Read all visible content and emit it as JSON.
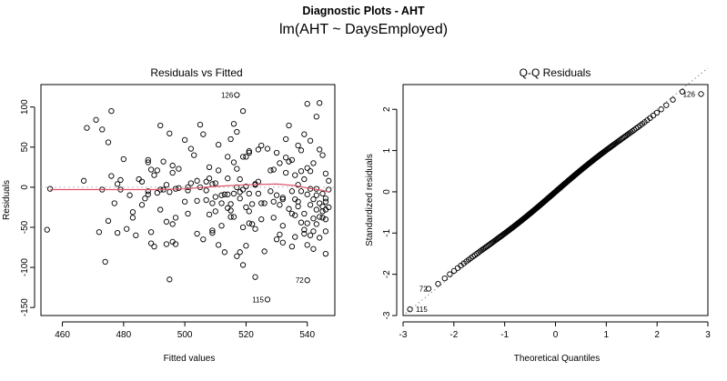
{
  "figure": {
    "title": "Diagnostic Plots - AHT",
    "subtitle": "lm(AHT ~ DaysEmployed)"
  },
  "colors": {
    "smooth_line": "#df536b",
    "reference_line": "#bebebe",
    "points": "#000000"
  },
  "chart_data": [
    {
      "type": "scatter",
      "title": "Residuals vs Fitted",
      "xlabel": "Fitted values",
      "ylabel": "Residuals",
      "xlim": [
        453,
        549
      ],
      "ylim": [
        -160,
        128
      ],
      "xticks": [
        460,
        480,
        500,
        520,
        540
      ],
      "yticks": [
        -150,
        -100,
        -50,
        0,
        50,
        100
      ],
      "points": [
        [
          455,
          -53
        ],
        [
          456,
          -2
        ],
        [
          467,
          8
        ],
        [
          468,
          74
        ],
        [
          471,
          84
        ],
        [
          472,
          -56
        ],
        [
          473,
          72
        ],
        [
          473,
          -3
        ],
        [
          474,
          -93
        ],
        [
          475,
          -42
        ],
        [
          475,
          56
        ],
        [
          476,
          14
        ],
        [
          476,
          95
        ],
        [
          477,
          -20
        ],
        [
          478,
          -57
        ],
        [
          478,
          4
        ],
        [
          479,
          9
        ],
        [
          479,
          -3
        ],
        [
          480,
          35
        ],
        [
          481,
          -52
        ],
        [
          482,
          -10
        ],
        [
          483,
          -38
        ],
        [
          483,
          -31
        ],
        [
          484,
          -60
        ],
        [
          485,
          10
        ],
        [
          486,
          7
        ],
        [
          486,
          -22
        ],
        [
          487,
          -14
        ],
        [
          488,
          31
        ],
        [
          488,
          -5
        ],
        [
          488,
          -9
        ],
        [
          488,
          34
        ],
        [
          489,
          -70
        ],
        [
          489,
          -56
        ],
        [
          489,
          22
        ],
        [
          490,
          -74
        ],
        [
          490,
          15
        ],
        [
          491,
          21
        ],
        [
          491,
          -7
        ],
        [
          492,
          -3
        ],
        [
          492,
          -28
        ],
        [
          492,
          77
        ],
        [
          493,
          -3
        ],
        [
          493,
          32
        ],
        [
          494,
          3
        ],
        [
          494,
          -43
        ],
        [
          494,
          -71
        ],
        [
          495,
          -115
        ],
        [
          495,
          67
        ],
        [
          495,
          -6
        ],
        [
          496,
          -68
        ],
        [
          496,
          27
        ],
        [
          496,
          -46
        ],
        [
          496,
          18
        ],
        [
          497,
          -71
        ],
        [
          497,
          -38
        ],
        [
          497,
          -2
        ],
        [
          498,
          23
        ],
        [
          498,
          -1
        ],
        [
          500,
          -18
        ],
        [
          500,
          59
        ],
        [
          501,
          0
        ],
        [
          501,
          -4
        ],
        [
          501,
          -33
        ],
        [
          502,
          5
        ],
        [
          502,
          48
        ],
        [
          503,
          40
        ],
        [
          504,
          -58
        ],
        [
          504,
          -17
        ],
        [
          504,
          8
        ],
        [
          505,
          0
        ],
        [
          505,
          78
        ],
        [
          506,
          -65
        ],
        [
          506,
          66
        ],
        [
          507,
          -4
        ],
        [
          507,
          -16
        ],
        [
          507,
          7
        ],
        [
          508,
          11
        ],
        [
          508,
          25
        ],
        [
          508,
          -34
        ],
        [
          509,
          -20
        ],
        [
          509,
          -57
        ],
        [
          509,
          -54
        ],
        [
          509,
          4
        ],
        [
          510,
          -12
        ],
        [
          510,
          -30
        ],
        [
          510,
          5
        ],
        [
          511,
          53
        ],
        [
          511,
          21
        ],
        [
          511,
          -72
        ],
        [
          512,
          -20
        ],
        [
          512,
          -48
        ],
        [
          512,
          -10
        ],
        [
          513,
          -9
        ],
        [
          513,
          -81
        ],
        [
          514,
          -9
        ],
        [
          514,
          38
        ],
        [
          514,
          -26
        ],
        [
          514,
          11
        ],
        [
          515,
          60
        ],
        [
          515,
          -21
        ],
        [
          515,
          -37
        ],
        [
          515,
          -29
        ],
        [
          516,
          31
        ],
        [
          516,
          -37
        ],
        [
          516,
          -8
        ],
        [
          516,
          79
        ],
        [
          517,
          115
        ],
        [
          517,
          -86
        ],
        [
          517,
          0
        ],
        [
          517,
          23
        ],
        [
          517,
          69
        ],
        [
          518,
          -81
        ],
        [
          518,
          -14
        ],
        [
          518,
          10
        ],
        [
          518,
          -6
        ],
        [
          519,
          38
        ],
        [
          519,
          95
        ],
        [
          519,
          -97
        ],
        [
          519,
          -50
        ],
        [
          519,
          -3
        ],
        [
          520,
          -73
        ],
        [
          520,
          1
        ],
        [
          520,
          -25
        ],
        [
          520,
          38
        ],
        [
          521,
          -8
        ],
        [
          521,
          45
        ],
        [
          521,
          -45
        ],
        [
          521,
          43
        ],
        [
          521,
          -30
        ],
        [
          522,
          -46
        ],
        [
          522,
          -21
        ],
        [
          523,
          3
        ],
        [
          523,
          -112
        ],
        [
          523,
          -52
        ],
        [
          523,
          4
        ],
        [
          524,
          -8
        ],
        [
          524,
          7
        ],
        [
          524,
          47
        ],
        [
          525,
          -20
        ],
        [
          525,
          52
        ],
        [
          525,
          -40
        ],
        [
          526,
          -80
        ],
        [
          526,
          -20
        ],
        [
          527,
          -140
        ],
        [
          527,
          48
        ],
        [
          528,
          -5
        ],
        [
          528,
          21
        ],
        [
          529,
          -38
        ],
        [
          529,
          -18
        ],
        [
          529,
          22
        ],
        [
          530,
          -65
        ],
        [
          530,
          43
        ],
        [
          530,
          -10
        ],
        [
          531,
          -22
        ],
        [
          531,
          -59
        ],
        [
          531,
          30
        ],
        [
          532,
          -13
        ],
        [
          532,
          -48
        ],
        [
          532,
          -69
        ],
        [
          532,
          -15
        ],
        [
          533,
          60
        ],
        [
          533,
          37
        ],
        [
          533,
          18
        ],
        [
          534,
          77
        ],
        [
          534,
          32
        ],
        [
          534,
          -27
        ],
        [
          535,
          -74
        ],
        [
          535,
          -5
        ],
        [
          535,
          -33
        ],
        [
          535,
          34
        ],
        [
          536,
          -62
        ],
        [
          536,
          -35
        ],
        [
          536,
          -15
        ],
        [
          536,
          15
        ],
        [
          537,
          3
        ],
        [
          537,
          52
        ],
        [
          537,
          -18
        ],
        [
          537,
          -24
        ],
        [
          538,
          20
        ],
        [
          538,
          -5
        ],
        [
          538,
          46
        ],
        [
          538,
          -44
        ],
        [
          539,
          -58
        ],
        [
          539,
          -53
        ],
        [
          539,
          -33
        ],
        [
          539,
          10
        ],
        [
          539,
          66
        ],
        [
          540,
          -116
        ],
        [
          540,
          -72
        ],
        [
          540,
          -45
        ],
        [
          540,
          -9
        ],
        [
          540,
          24
        ],
        [
          540,
          104
        ],
        [
          541,
          -60
        ],
        [
          541,
          -22
        ],
        [
          541,
          -2
        ],
        [
          541,
          20
        ],
        [
          541,
          58
        ],
        [
          542,
          -15
        ],
        [
          542,
          -39
        ],
        [
          542,
          -55
        ],
        [
          542,
          30
        ],
        [
          542,
          -77
        ],
        [
          543,
          -28
        ],
        [
          543,
          -2
        ],
        [
          543,
          88
        ],
        [
          543,
          -46
        ],
        [
          543,
          -10
        ],
        [
          544,
          -37
        ],
        [
          544,
          -63
        ],
        [
          544,
          -20
        ],
        [
          544,
          105
        ],
        [
          544,
          47
        ],
        [
          545,
          -38
        ],
        [
          545,
          40
        ],
        [
          545,
          -24
        ],
        [
          545,
          -30
        ],
        [
          545,
          -8
        ],
        [
          546,
          -40
        ],
        [
          546,
          -55
        ],
        [
          546,
          -28
        ],
        [
          546,
          -18
        ],
        [
          546,
          -14
        ],
        [
          546,
          -83
        ],
        [
          546,
          17
        ],
        [
          547,
          8
        ],
        [
          547,
          -3
        ],
        [
          547,
          -25
        ]
      ],
      "smooth": [
        [
          456,
          -3
        ],
        [
          470,
          -3
        ],
        [
          480,
          -3
        ],
        [
          490,
          -3
        ],
        [
          500,
          -2
        ],
        [
          510,
          1
        ],
        [
          520,
          3
        ],
        [
          530,
          4
        ],
        [
          536,
          2
        ],
        [
          540,
          -1
        ],
        [
          545,
          -4
        ],
        [
          547,
          -6
        ]
      ],
      "annotations": [
        {
          "label": "126",
          "x": 517,
          "y": 115
        },
        {
          "label": "72",
          "x": 540,
          "y": -116
        },
        {
          "label": "115",
          "x": 527,
          "y": -140
        }
      ]
    },
    {
      "type": "scatter",
      "title": "Q-Q Residuals",
      "xlabel": "Theoretical Quantiles",
      "ylabel": "Standardized residuals",
      "xlim": [
        -3,
        3
      ],
      "ylim": [
        -3.0,
        2.6
      ],
      "xticks": [
        -3,
        -2,
        -1,
        0,
        1,
        2,
        3
      ],
      "yticks": [
        -3,
        -2,
        -1,
        0,
        1,
        2
      ],
      "n_points": 240,
      "reference_line": {
        "from": [
          -2.95,
          -2.95
        ],
        "to": [
          3.0,
          3.0
        ]
      },
      "extreme_points": [
        {
          "label": "115",
          "x": -2.82,
          "y": -2.85
        },
        {
          "label": "72",
          "x": -2.45,
          "y": -2.35
        },
        {
          "label": "126",
          "x": 2.82,
          "y": 2.37
        }
      ]
    }
  ]
}
